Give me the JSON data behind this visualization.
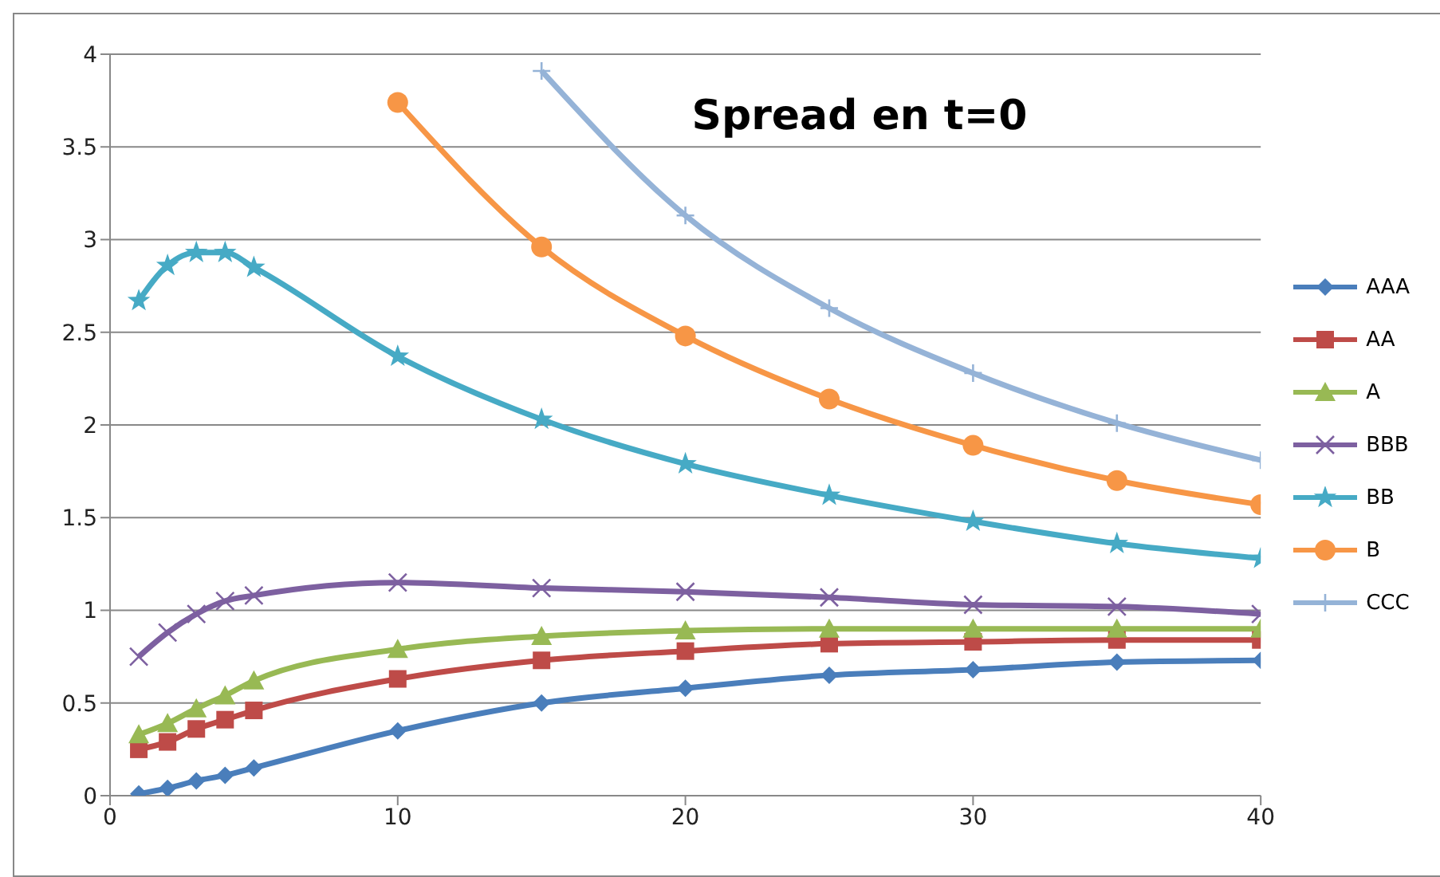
{
  "chart_data": {
    "type": "line",
    "title": "Spread en t=0",
    "x": [
      1,
      2,
      3,
      4,
      5,
      10,
      15,
      20,
      25,
      30,
      35,
      40
    ],
    "xlim": [
      0,
      40
    ],
    "xticks": [
      0,
      10,
      20,
      30,
      40
    ],
    "ylim": [
      0,
      4
    ],
    "yticks": [
      0,
      0.5,
      1,
      1.5,
      2,
      2.5,
      3,
      3.5,
      4
    ],
    "grid": "y",
    "legend": "right",
    "series": [
      {
        "name": "AAA",
        "color": "#4a7ebb",
        "marker": "diamond",
        "values": [
          0.01,
          0.04,
          0.08,
          0.11,
          0.15,
          0.35,
          0.5,
          0.58,
          0.65,
          0.68,
          0.72,
          0.73
        ]
      },
      {
        "name": "AA",
        "color": "#be4b48",
        "marker": "square",
        "values": [
          0.25,
          0.29,
          0.36,
          0.41,
          0.46,
          0.63,
          0.73,
          0.78,
          0.82,
          0.83,
          0.84,
          0.84
        ]
      },
      {
        "name": "A",
        "color": "#98b954",
        "marker": "triangle",
        "values": [
          0.33,
          0.39,
          0.47,
          0.54,
          0.62,
          0.79,
          0.86,
          0.89,
          0.9,
          0.9,
          0.9,
          0.9
        ]
      },
      {
        "name": "BBB",
        "color": "#7d60a0",
        "marker": "cross",
        "values": [
          0.75,
          0.88,
          0.98,
          1.05,
          1.08,
          1.15,
          1.12,
          1.1,
          1.07,
          1.03,
          1.02,
          0.98
        ]
      },
      {
        "name": "BB",
        "color": "#46aac5",
        "marker": "star",
        "values": [
          2.67,
          2.86,
          2.93,
          2.93,
          2.85,
          2.37,
          2.03,
          1.79,
          1.62,
          1.48,
          1.36,
          1.28
        ]
      },
      {
        "name": "B",
        "color": "#f79646",
        "marker": "circle",
        "values": [
          null,
          null,
          null,
          null,
          null,
          3.74,
          2.96,
          2.48,
          2.14,
          1.89,
          1.7,
          1.57
        ]
      },
      {
        "name": "CCC",
        "color": "#95b3d7",
        "marker": "plus",
        "values": [
          null,
          null,
          null,
          null,
          null,
          null,
          3.91,
          3.13,
          2.63,
          2.28,
          2.01,
          1.81
        ]
      }
    ]
  }
}
